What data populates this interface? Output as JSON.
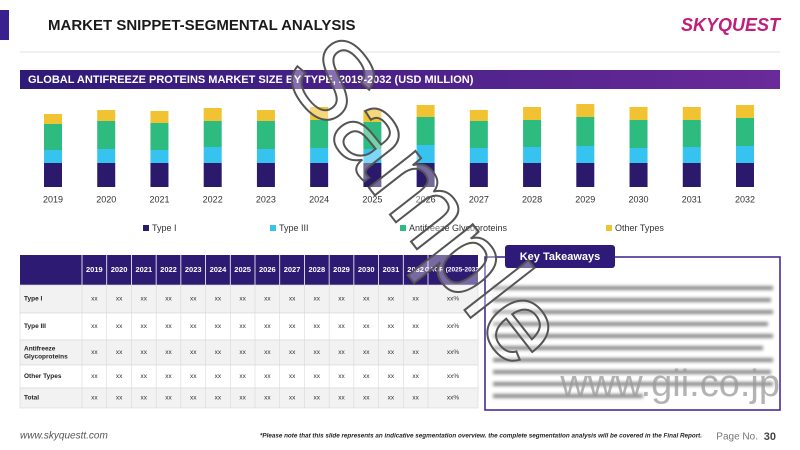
{
  "header": {
    "title": "MARKET SNIPPET-SEGMENTAL ANALYSIS",
    "logo": "SKYQUEST"
  },
  "chart_data": {
    "type": "bar",
    "stacked": true,
    "title": "GLOBAL ANTIFREEZE PROTEINS MARKET SIZE BY TYPE, 2019-2032 (USD MILLION)",
    "categories": [
      "2019",
      "2020",
      "2021",
      "2022",
      "2023",
      "2024",
      "2025",
      "2026",
      "2027",
      "2028",
      "2029",
      "2030",
      "2031",
      "2032"
    ],
    "series": [
      {
        "name": "Type I",
        "color": "#2b1a6b",
        "values": [
          24,
          24,
          24,
          24,
          24,
          24,
          24,
          24,
          24,
          24,
          24,
          24,
          24,
          24
        ]
      },
      {
        "name": "Type III",
        "color": "#36c3f0",
        "values": [
          13,
          14,
          13,
          16,
          14,
          15,
          14,
          18,
          15,
          16,
          17,
          15,
          16,
          17
        ]
      },
      {
        "name": "Antifreeze Glycoproteins",
        "color": "#2dbb7f",
        "values": [
          26,
          28,
          27,
          26,
          28,
          28,
          27,
          28,
          27,
          27,
          29,
          28,
          27,
          28
        ]
      },
      {
        "name": "Other Types",
        "color": "#f1c232",
        "values": [
          10,
          11,
          12,
          13,
          11,
          13,
          12,
          12,
          11,
          13,
          13,
          13,
          13,
          13
        ]
      }
    ],
    "legend": "bottom"
  },
  "table": {
    "columns": [
      "2019",
      "2020",
      "2021",
      "2022",
      "2023",
      "2024",
      "2025",
      "2026",
      "2027",
      "2028",
      "2029",
      "2030",
      "2031",
      "2032",
      "CAGR (2025-2032)"
    ],
    "rows": [
      [
        "Type I",
        "xx",
        "xx",
        "xx",
        "xx",
        "xx",
        "xx",
        "xx",
        "xx",
        "xx",
        "xx",
        "xx",
        "xx",
        "xx",
        "xx",
        "xx%"
      ],
      [
        "Type III",
        "xx",
        "xx",
        "xx",
        "xx",
        "xx",
        "xx",
        "xx",
        "xx",
        "xx",
        "xx",
        "xx",
        "xx",
        "xx",
        "xx",
        "xx%"
      ],
      [
        "Antifreeze Glycoproteins",
        "xx",
        "xx",
        "xx",
        "xx",
        "xx",
        "xx",
        "xx",
        "xx",
        "xx",
        "xx",
        "xx",
        "xx",
        "xx",
        "xx",
        "xx%"
      ],
      [
        "Other Types",
        "xx",
        "xx",
        "xx",
        "xx",
        "xx",
        "xx",
        "xx",
        "xx",
        "xx",
        "xx",
        "xx",
        "xx",
        "xx",
        "xx",
        "xx%"
      ],
      [
        "Total",
        "xx",
        "xx",
        "xx",
        "xx",
        "xx",
        "xx",
        "xx",
        "xx",
        "xx",
        "xx",
        "xx",
        "xx",
        "xx",
        "xx",
        "xx%"
      ]
    ]
  },
  "key_takeaways": {
    "title": "Key Takeaways"
  },
  "footer": {
    "website": "www.skyquestt.com",
    "note": "*Please note that this slide represents an indicative segmentation overview. the complete segmentation analysis will be covered in the Final Report.",
    "page_label": "Page No.",
    "page_number": "30"
  },
  "watermarks": [
    "Sample",
    "www.gii.co.jp"
  ]
}
